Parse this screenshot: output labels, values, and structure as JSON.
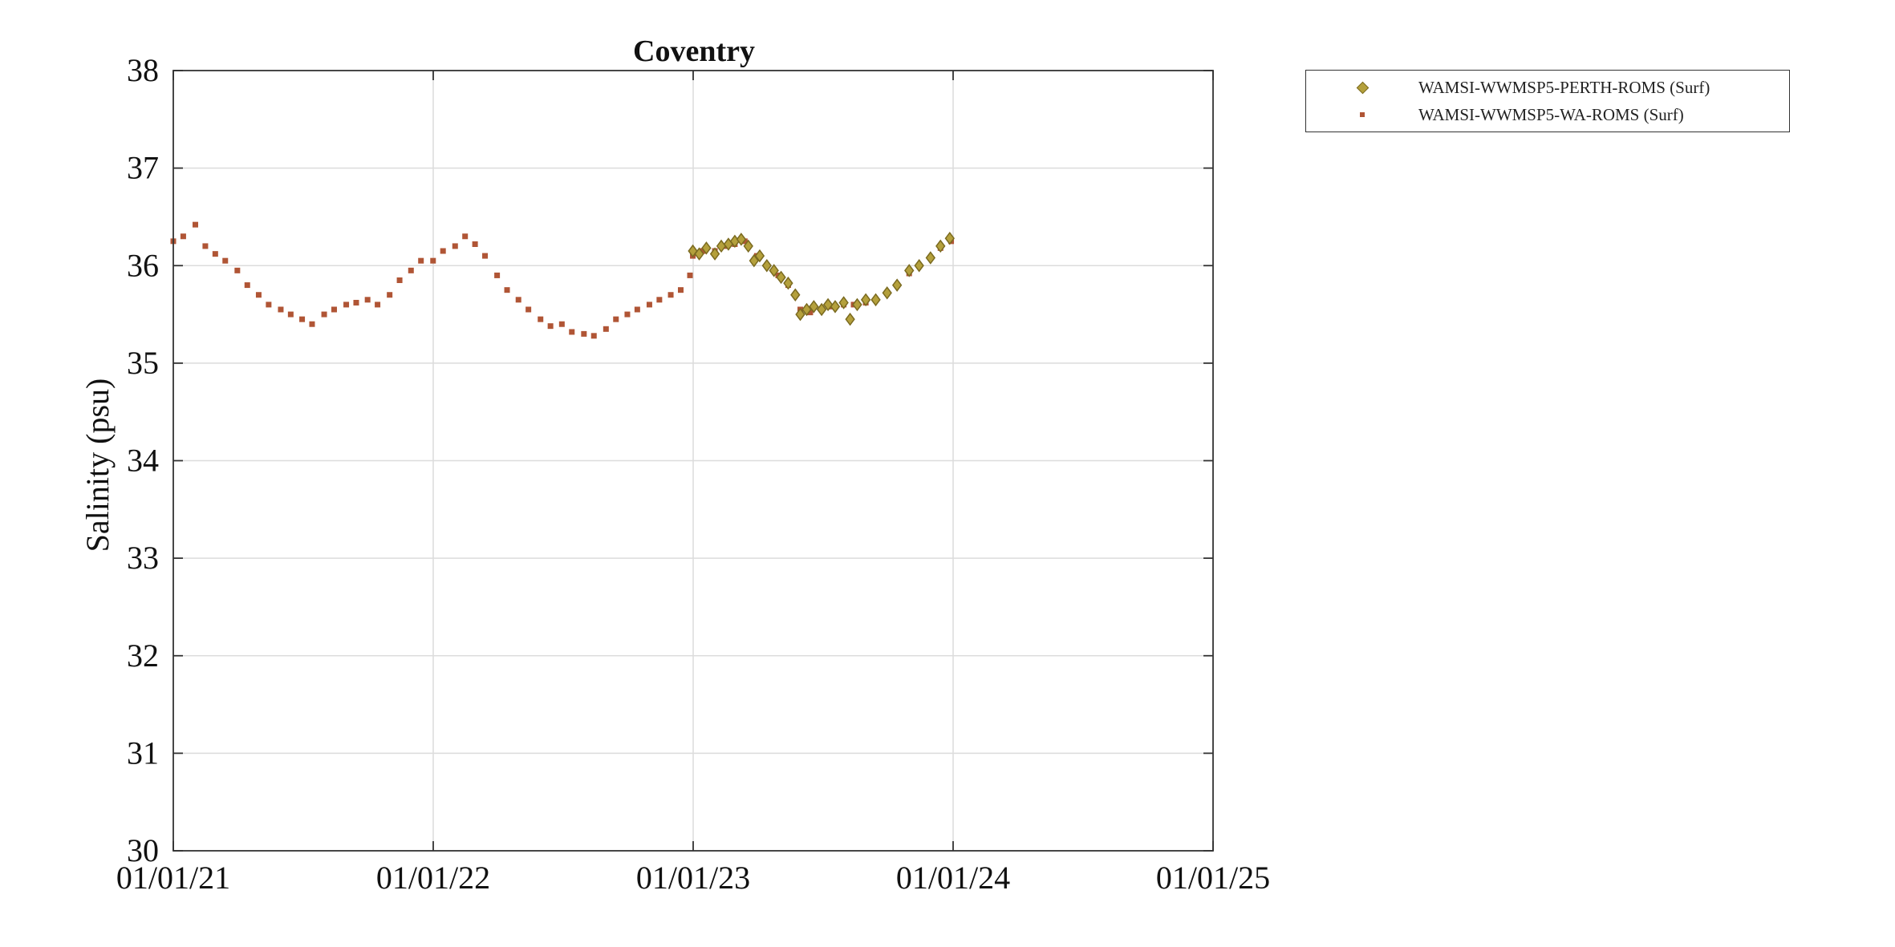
{
  "chart_data": {
    "type": "scatter",
    "title": "Coventry",
    "xlabel": "",
    "ylabel": "Salinity (psu)",
    "xlim": [
      "2021-01-01",
      "2025-01-01"
    ],
    "ylim": [
      30,
      38
    ],
    "xticks": [
      "01/01/21",
      "01/01/22",
      "01/01/23",
      "01/01/24",
      "01/01/25"
    ],
    "yticks": [
      "30",
      "31",
      "32",
      "33",
      "34",
      "35",
      "36",
      "37",
      "38"
    ],
    "grid": true,
    "legend_position": "outside-top-right",
    "series": [
      {
        "name": "WAMSI-WWMSP5-PERTH-ROMS (Surf)",
        "marker": "diamond",
        "color": "#b4a03c",
        "edge_color": "#7a6a20",
        "points": [
          [
            "2023-01-01",
            36.15
          ],
          [
            "2023-01-10",
            36.12
          ],
          [
            "2023-01-20",
            36.18
          ],
          [
            "2023-02-01",
            36.12
          ],
          [
            "2023-02-10",
            36.2
          ],
          [
            "2023-02-20",
            36.22
          ],
          [
            "2023-03-01",
            36.25
          ],
          [
            "2023-03-10",
            36.27
          ],
          [
            "2023-03-20",
            36.2
          ],
          [
            "2023-03-28",
            36.05
          ],
          [
            "2023-04-05",
            36.1
          ],
          [
            "2023-04-15",
            36.0
          ],
          [
            "2023-04-25",
            35.95
          ],
          [
            "2023-05-05",
            35.88
          ],
          [
            "2023-05-15",
            35.82
          ],
          [
            "2023-05-25",
            35.7
          ],
          [
            "2023-06-01",
            35.5
          ],
          [
            "2023-06-10",
            35.55
          ],
          [
            "2023-06-20",
            35.58
          ],
          [
            "2023-07-01",
            35.55
          ],
          [
            "2023-07-10",
            35.6
          ],
          [
            "2023-07-20",
            35.58
          ],
          [
            "2023-08-01",
            35.62
          ],
          [
            "2023-08-10",
            35.45
          ],
          [
            "2023-08-20",
            35.6
          ],
          [
            "2023-09-01",
            35.65
          ],
          [
            "2023-09-15",
            35.65
          ],
          [
            "2023-10-01",
            35.72
          ],
          [
            "2023-10-15",
            35.8
          ],
          [
            "2023-11-01",
            35.95
          ],
          [
            "2023-11-15",
            36.0
          ],
          [
            "2023-12-01",
            36.08
          ],
          [
            "2023-12-15",
            36.2
          ],
          [
            "2023-12-28",
            36.28
          ]
        ]
      },
      {
        "name": "WAMSI-WWMSP5-WA-ROMS (Surf)",
        "marker": "square",
        "color": "#b05535",
        "points": [
          [
            "2021-01-01",
            36.25
          ],
          [
            "2021-01-15",
            36.3
          ],
          [
            "2021-02-01",
            36.42
          ],
          [
            "2021-02-15",
            36.2
          ],
          [
            "2021-03-01",
            36.12
          ],
          [
            "2021-03-15",
            36.05
          ],
          [
            "2021-04-01",
            35.95
          ],
          [
            "2021-04-15",
            35.8
          ],
          [
            "2021-05-01",
            35.7
          ],
          [
            "2021-05-15",
            35.6
          ],
          [
            "2021-06-01",
            35.55
          ],
          [
            "2021-06-15",
            35.5
          ],
          [
            "2021-07-01",
            35.45
          ],
          [
            "2021-07-15",
            35.4
          ],
          [
            "2021-08-01",
            35.5
          ],
          [
            "2021-08-15",
            35.55
          ],
          [
            "2021-09-01",
            35.6
          ],
          [
            "2021-09-15",
            35.62
          ],
          [
            "2021-10-01",
            35.65
          ],
          [
            "2021-10-15",
            35.6
          ],
          [
            "2021-11-01",
            35.7
          ],
          [
            "2021-11-15",
            35.85
          ],
          [
            "2021-12-01",
            35.95
          ],
          [
            "2021-12-15",
            36.05
          ],
          [
            "2022-01-01",
            36.05
          ],
          [
            "2022-01-15",
            36.15
          ],
          [
            "2022-02-01",
            36.2
          ],
          [
            "2022-02-15",
            36.3
          ],
          [
            "2022-03-01",
            36.22
          ],
          [
            "2022-03-15",
            36.1
          ],
          [
            "2022-04-01",
            35.9
          ],
          [
            "2022-04-15",
            35.75
          ],
          [
            "2022-05-01",
            35.65
          ],
          [
            "2022-05-15",
            35.55
          ],
          [
            "2022-06-01",
            35.45
          ],
          [
            "2022-06-15",
            35.38
          ],
          [
            "2022-07-01",
            35.4
          ],
          [
            "2022-07-15",
            35.32
          ],
          [
            "2022-08-01",
            35.3
          ],
          [
            "2022-08-15",
            35.28
          ],
          [
            "2022-09-01",
            35.35
          ],
          [
            "2022-09-15",
            35.45
          ],
          [
            "2022-10-01",
            35.5
          ],
          [
            "2022-10-15",
            35.55
          ],
          [
            "2022-11-01",
            35.6
          ],
          [
            "2022-11-15",
            35.65
          ],
          [
            "2022-12-01",
            35.7
          ],
          [
            "2022-12-15",
            35.75
          ],
          [
            "2022-12-28",
            35.9
          ],
          [
            "2023-01-01",
            36.1
          ],
          [
            "2023-01-15",
            36.15
          ],
          [
            "2023-02-01",
            36.15
          ],
          [
            "2023-02-15",
            36.2
          ],
          [
            "2023-03-01",
            36.22
          ],
          [
            "2023-03-15",
            36.25
          ],
          [
            "2023-04-01",
            36.1
          ],
          [
            "2023-04-15",
            36.0
          ],
          [
            "2023-05-01",
            35.9
          ],
          [
            "2023-05-15",
            35.8
          ],
          [
            "2023-06-01",
            35.55
          ],
          [
            "2023-06-15",
            35.52
          ],
          [
            "2023-07-01",
            35.55
          ],
          [
            "2023-07-15",
            35.58
          ],
          [
            "2023-08-01",
            35.6
          ],
          [
            "2023-08-15",
            35.6
          ],
          [
            "2023-09-01",
            35.62
          ],
          [
            "2023-09-15",
            35.65
          ],
          [
            "2023-10-01",
            35.72
          ],
          [
            "2023-10-15",
            35.8
          ],
          [
            "2023-11-01",
            35.92
          ],
          [
            "2023-11-15",
            36.0
          ],
          [
            "2023-12-01",
            36.08
          ],
          [
            "2023-12-15",
            36.18
          ],
          [
            "2023-12-30",
            36.25
          ]
        ]
      }
    ]
  }
}
